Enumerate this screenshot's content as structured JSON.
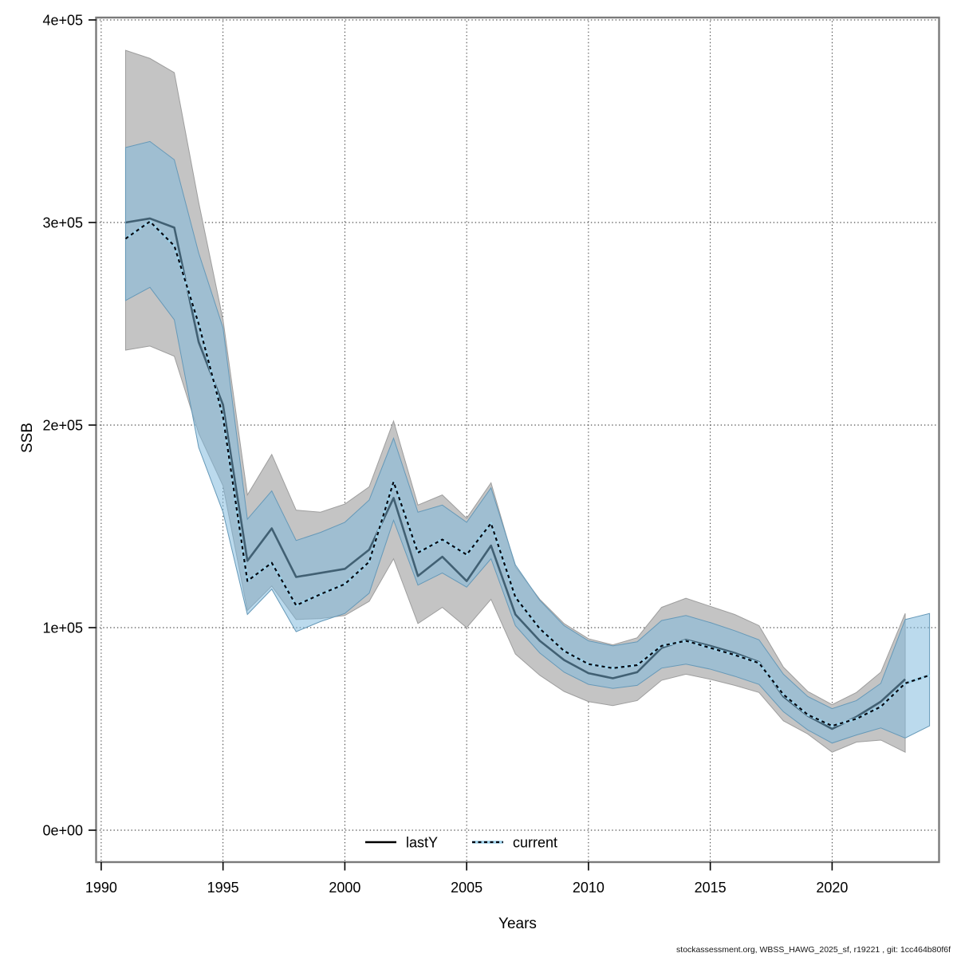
{
  "footer": {
    "text": "stockassessment.org, WBSS_HAWG_2025_sf, r19221 , git: 1cc464b80f6f"
  },
  "chart_data": {
    "type": "line",
    "title": "",
    "xlabel": "Years",
    "ylabel": "SSB",
    "grid": "dotted",
    "legend_position": "bottom-center",
    "xlim": [
      1989.8,
      2024.4
    ],
    "ylim": [
      0,
      400000
    ],
    "x_ticks": [
      1990,
      1995,
      2000,
      2005,
      2010,
      2015,
      2020
    ],
    "y_ticks": [
      {
        "v": 0,
        "label": "0e+00"
      },
      {
        "v": 100000,
        "label": "1e+05"
      },
      {
        "v": 200000,
        "label": "2e+05"
      },
      {
        "v": 300000,
        "label": "3e+05"
      },
      {
        "v": 400000,
        "label": "4e+05"
      }
    ],
    "legend": [
      {
        "label": "lastY",
        "style": "solid",
        "color": "#000000"
      },
      {
        "label": "current",
        "style": "dotted",
        "color": "#06060e",
        "under_color": "#9fd2ea"
      }
    ],
    "colors": {
      "gray_band": "#c4c4c4",
      "gray_band_edge": "#9e9e9e",
      "blue_band": "rgba(125,184,220,0.52)",
      "blue_band_edge": "#6699b8",
      "lasty_line": "#000000",
      "current_dash": "#06060e",
      "current_under": "#9fd2ea",
      "grid": "#000000",
      "box": "#7a7a7a",
      "tick": "#000000"
    },
    "years": [
      1991,
      1992,
      1993,
      1994,
      1995,
      1996,
      1997,
      1998,
      1999,
      2000,
      2001,
      2002,
      2003,
      2004,
      2005,
      2006,
      2007,
      2008,
      2009,
      2010,
      2011,
      2012,
      2013,
      2014,
      2015,
      2016,
      2017,
      2018,
      2019,
      2020,
      2021,
      2022,
      2023,
      2024
    ],
    "series": [
      {
        "name": "lastY",
        "values": [
          300000,
          302000,
          297500,
          241000,
          210000,
          133000,
          149000,
          125000,
          127000,
          129000,
          138500,
          164000,
          125500,
          135000,
          123000,
          140500,
          106500,
          93500,
          84000,
          77500,
          75000,
          78000,
          90000,
          94000,
          91000,
          87500,
          83000,
          66000,
          56500,
          50000,
          56000,
          63500,
          74500,
          null
        ],
        "ci_low": [
          237000,
          239000,
          234000,
          196000,
          170000,
          108500,
          120500,
          104000,
          104500,
          106000,
          113000,
          134000,
          102000,
          110000,
          100000,
          114000,
          87000,
          76500,
          68500,
          63500,
          61500,
          64000,
          74000,
          77000,
          74500,
          71500,
          68000,
          54000,
          47500,
          38500,
          43500,
          44500,
          38500,
          null
        ],
        "ci_high": [
          385000,
          381000,
          374000,
          310000,
          252000,
          165500,
          185500,
          158000,
          157000,
          161000,
          169500,
          202000,
          160500,
          165500,
          154000,
          171500,
          130000,
          114000,
          102000,
          94500,
          91500,
          95000,
          110000,
          114500,
          110500,
          106500,
          101000,
          80500,
          68500,
          62000,
          68000,
          78000,
          107000,
          null
        ]
      },
      {
        "name": "current",
        "values": [
          292000,
          300500,
          288500,
          250000,
          204000,
          123000,
          132000,
          111000,
          116500,
          121500,
          132500,
          172000,
          137000,
          143500,
          136000,
          151500,
          115000,
          99500,
          88500,
          82000,
          80000,
          81500,
          91000,
          93500,
          90000,
          86500,
          82500,
          67000,
          57000,
          51500,
          55000,
          61000,
          72500,
          76500
        ],
        "ci_low": [
          261500,
          268000,
          252000,
          189000,
          157000,
          106500,
          119000,
          98000,
          103000,
          107000,
          117000,
          153000,
          121000,
          127000,
          120000,
          134000,
          101000,
          87500,
          78000,
          72000,
          70000,
          71500,
          80000,
          82000,
          79500,
          76000,
          72000,
          58500,
          49500,
          43000,
          47000,
          50500,
          45500,
          51500
        ],
        "ci_high": [
          337000,
          340000,
          331000,
          285000,
          248000,
          153500,
          167500,
          143000,
          147000,
          152000,
          163000,
          193500,
          157000,
          160500,
          152000,
          169000,
          131000,
          113500,
          101000,
          93500,
          91000,
          93000,
          103500,
          106000,
          102500,
          98500,
          94000,
          77000,
          66000,
          60000,
          64000,
          72500,
          104000,
          107000
        ]
      }
    ]
  }
}
